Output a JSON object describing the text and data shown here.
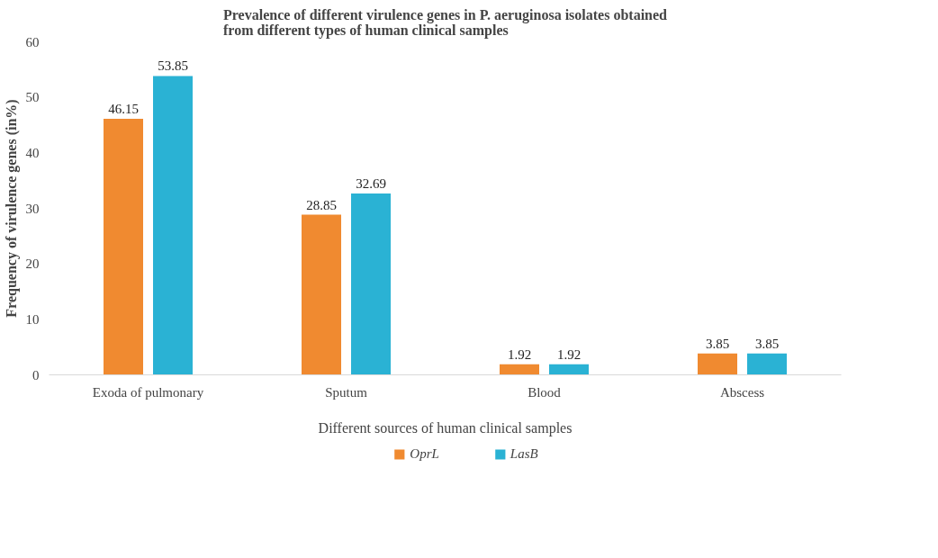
{
  "chart_data": {
    "type": "bar",
    "title": "Prevalence of different virulence genes in P. aeruginosa isolates obtained\nfrom different types of human clinical samples",
    "xlabel": "Different sources of human clinical samples",
    "ylabel": "Frequency of virulence genes (in%)",
    "categories": [
      "Exoda of pulmonary",
      "Sputum",
      "Blood",
      "Abscess"
    ],
    "series": [
      {
        "name": "OprL",
        "color": "#f08a30",
        "values": [
          46.15,
          28.85,
          1.92,
          3.85
        ]
      },
      {
        "name": "LasB",
        "color": "#2ab2d4",
        "values": [
          53.85,
          32.69,
          1.92,
          3.85
        ]
      }
    ],
    "ylim": [
      0,
      60
    ],
    "yticks": [
      0,
      10,
      20,
      30,
      40,
      50,
      60
    ],
    "grid": false,
    "legend": "bottom",
    "data_labels": true
  }
}
